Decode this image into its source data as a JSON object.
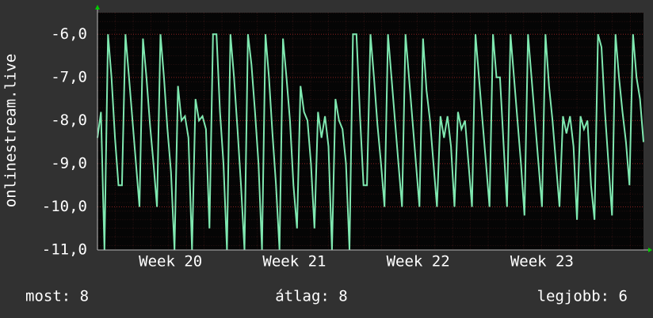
{
  "chart_data": {
    "type": "line",
    "y_label": "onlinestream.live",
    "footer": [
      "most: 8",
      "átlag: 8",
      "legjobb: 6"
    ],
    "xlim": [
      19.41,
      23.82
    ],
    "xticks": [
      {
        "value": 20,
        "label": "Week 20"
      },
      {
        "value": 21,
        "label": "Week 21"
      },
      {
        "value": 22,
        "label": "Week 22"
      },
      {
        "value": 23,
        "label": "Week 23"
      }
    ],
    "ylim": [
      -11,
      -5.5
    ],
    "yticks": [
      {
        "value": -11,
        "label": "-11,0"
      },
      {
        "value": -10,
        "label": "-10,0"
      },
      {
        "value": -9,
        "label": "-9,0"
      },
      {
        "value": -8,
        "label": "-8,0"
      },
      {
        "value": -7,
        "label": "-7,0"
      },
      {
        "value": -6,
        "label": "-6,0"
      }
    ],
    "grid": true,
    "color": "#7fe8b0",
    "values": [
      -8.4,
      -7.8,
      -11.0,
      -6.0,
      -7.0,
      -8.4,
      -9.5,
      -9.5,
      -6.0,
      -7.0,
      -8.0,
      -9.0,
      -10.0,
      -6.1,
      -7.0,
      -8.1,
      -9.0,
      -10.0,
      -6.0,
      -7.0,
      -8.2,
      -9.2,
      -11.0,
      -7.2,
      -8.0,
      -7.9,
      -8.4,
      -11.0,
      -7.5,
      -8.0,
      -7.9,
      -8.2,
      -10.5,
      -6.0,
      -6.0,
      -7.8,
      -9.0,
      -11.0,
      -6.0,
      -7.0,
      -8.2,
      -9.5,
      -11.0,
      -6.0,
      -6.7,
      -7.8,
      -9.0,
      -11.0,
      -6.0,
      -7.0,
      -8.3,
      -9.5,
      -11.0,
      -6.1,
      -7.0,
      -8.0,
      -9.5,
      -10.5,
      -7.2,
      -7.8,
      -8.0,
      -9.0,
      -10.5,
      -7.8,
      -8.4,
      -7.9,
      -8.6,
      -11.0,
      -7.5,
      -8.0,
      -8.2,
      -9.0,
      -11.0,
      -6.0,
      -6.0,
      -7.9,
      -9.5,
      -9.5,
      -6.0,
      -7.0,
      -8.1,
      -9.0,
      -10.0,
      -6.0,
      -7.0,
      -8.0,
      -9.0,
      -10.0,
      -6.0,
      -7.0,
      -8.0,
      -9.0,
      -10.0,
      -6.1,
      -7.3,
      -8.0,
      -9.0,
      -10.0,
      -7.9,
      -8.4,
      -7.9,
      -8.6,
      -10.0,
      -7.8,
      -8.2,
      -8.0,
      -9.0,
      -10.0,
      -6.0,
      -7.0,
      -8.0,
      -9.0,
      -10.0,
      -6.0,
      -7.0,
      -7.0,
      -8.5,
      -10.0,
      -6.0,
      -7.0,
      -8.0,
      -9.0,
      -10.2,
      -6.0,
      -7.0,
      -8.0,
      -9.0,
      -10.0,
      -6.0,
      -7.2,
      -8.0,
      -9.0,
      -10.0,
      -7.9,
      -8.3,
      -7.9,
      -8.6,
      -10.3,
      -7.9,
      -8.2,
      -8.0,
      -9.5,
      -10.3,
      -6.0,
      -6.3,
      -7.8,
      -9.0,
      -10.2,
      -6.0,
      -7.0,
      -7.8,
      -8.5,
      -9.5,
      -6.0,
      -7.0,
      -7.5,
      -8.5
    ]
  }
}
